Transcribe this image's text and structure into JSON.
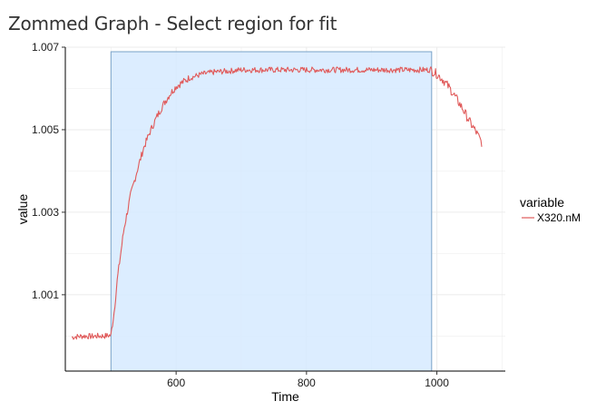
{
  "page": {
    "title": "Zommed Graph - Select region for fit"
  },
  "colors": {
    "series": "#e05a5a",
    "selection_fill": "#d6eaff",
    "selection_stroke": "#7aa3c7",
    "grid": "#ebebeb"
  },
  "chart_data": {
    "type": "line",
    "title": "",
    "xlabel": "Time",
    "ylabel": "value",
    "xlim": [
      430,
      1105
    ],
    "ylim": [
      0.99915,
      1.007
    ],
    "x_ticks": [
      600,
      800,
      1000
    ],
    "x_tick_labels": [
      "600",
      "800",
      "1000"
    ],
    "y_ticks": [
      1.001,
      1.003,
      1.005,
      1.007
    ],
    "y_tick_labels": [
      "1.001",
      "1.003",
      "1.005",
      "1.007"
    ],
    "grid": true,
    "legend": {
      "title": "variable",
      "position": "right"
    },
    "selection": {
      "x_start": 500,
      "x_end": 992
    },
    "series": [
      {
        "name": "X320.nM",
        "x": [
          440,
          450,
          460,
          470,
          480,
          490,
          500,
          505,
          510,
          515,
          520,
          530,
          540,
          550,
          560,
          570,
          580,
          590,
          600,
          610,
          620,
          640,
          660,
          680,
          700,
          750,
          800,
          850,
          900,
          950,
          990,
          1000,
          1010,
          1020,
          1030,
          1040,
          1050,
          1060,
          1070
        ],
        "y": [
          0.99997,
          0.99999,
          1.0,
          0.99999,
          1.0,
          1.0,
          1.00002,
          1.0006,
          1.0014,
          1.002,
          1.0026,
          1.0034,
          1.004,
          1.00455,
          1.00495,
          1.0053,
          1.0056,
          1.00585,
          1.00605,
          1.00615,
          1.00625,
          1.00635,
          1.0064,
          1.00642,
          1.00645,
          1.00645,
          1.00645,
          1.00645,
          1.00645,
          1.00645,
          1.00645,
          1.00635,
          1.0062,
          1.006,
          1.00575,
          1.0055,
          1.0052,
          1.00495,
          1.00465
        ]
      }
    ]
  }
}
